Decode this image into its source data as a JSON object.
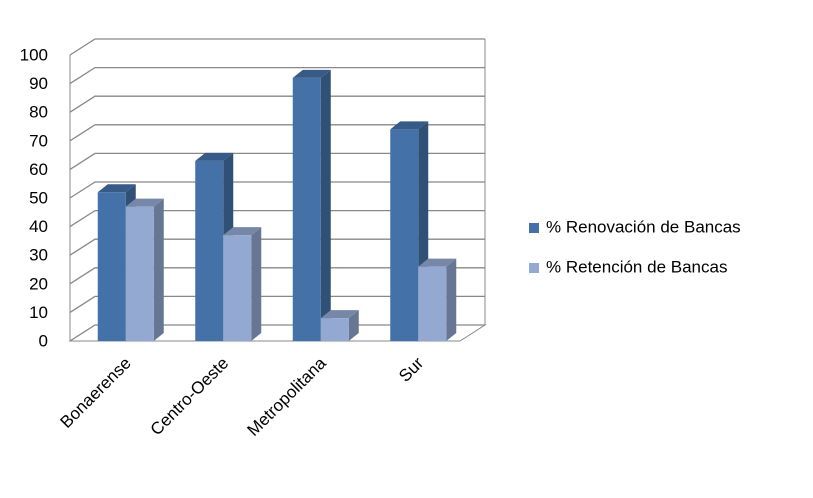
{
  "chart_data": {
    "type": "bar3d",
    "categories": [
      "Bonaerense",
      "Centro-Oeste",
      "Metropolitana",
      "Sur"
    ],
    "series": [
      {
        "name": "% Renovación de Bancas",
        "color": "#4472a8",
        "values": [
          52,
          63,
          92,
          74
        ]
      },
      {
        "name": "% Retención de Bancas",
        "color": "#93a9d2",
        "values": [
          47,
          37,
          8,
          26
        ]
      }
    ],
    "ylim": [
      0,
      100
    ],
    "yticks": [
      0,
      10,
      20,
      30,
      40,
      50,
      60,
      70,
      80,
      90,
      100
    ],
    "grid": true,
    "legend": "right"
  }
}
